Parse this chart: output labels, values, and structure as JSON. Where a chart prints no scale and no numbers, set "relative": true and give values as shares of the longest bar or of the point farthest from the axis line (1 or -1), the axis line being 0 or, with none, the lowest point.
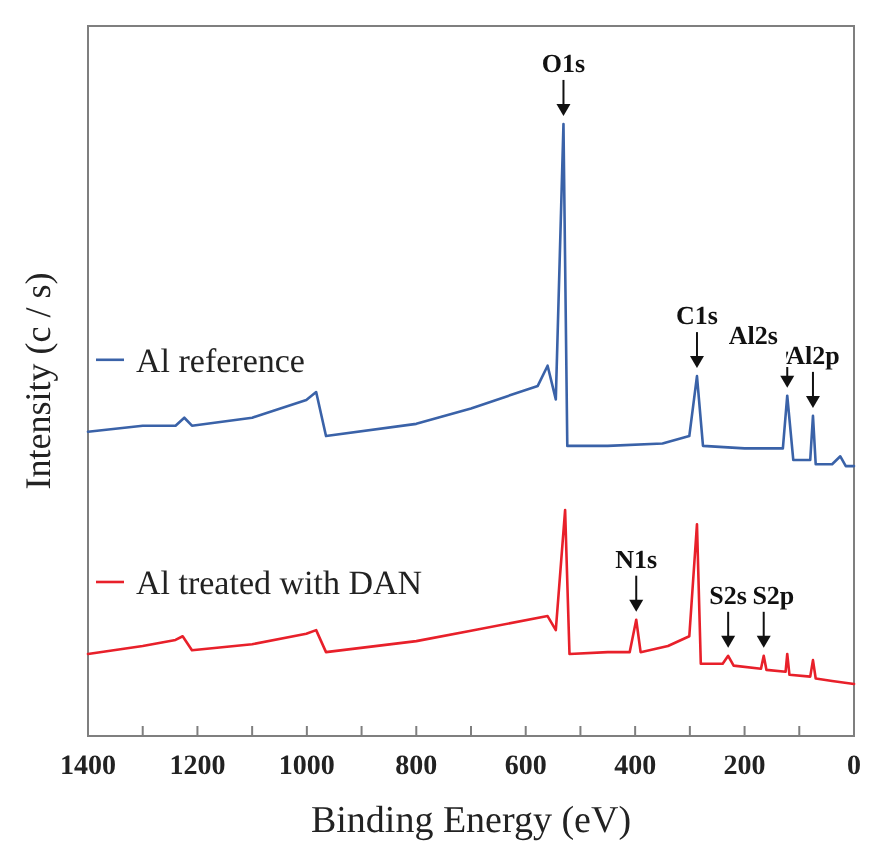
{
  "chart_data": {
    "type": "line",
    "relative": true,
    "xlabel": "Binding Energy (eV)",
    "ylabel": "Intensity (c / s)",
    "xlim": [
      1400,
      0
    ],
    "xticks": [
      1400,
      {
        "value": 1300,
        "label": null
      },
      1200,
      {
        "value": 1100,
        "label": null
      },
      1000,
      {
        "value": 900,
        "label": null
      },
      800,
      {
        "value": 700,
        "label": null
      },
      600,
      {
        "value": 500,
        "label": null
      },
      400,
      {
        "value": 300,
        "label": null
      },
      200,
      {
        "value": 100,
        "label": null
      },
      0
    ],
    "grid": false,
    "legend": "left",
    "marker": "none",
    "line_style": "solid",
    "series": [
      {
        "name": "Al reference",
        "color": "#3a62a8",
        "x": [
          1400,
          1300,
          1240,
          1224,
          1210,
          1100,
          1001,
          983,
          965,
          800,
          700,
          578,
          560,
          545,
          531,
          524,
          450,
          350,
          301,
          287,
          276,
          200,
          130,
          122,
          111,
          80,
          75,
          70,
          40,
          25,
          15,
          0
        ],
        "values": [
          0.497,
          0.507,
          0.507,
          0.52,
          0.507,
          0.52,
          0.549,
          0.562,
          0.49,
          0.51,
          0.535,
          0.572,
          0.605,
          0.55,
          1.0,
          0.474,
          0.474,
          0.478,
          0.49,
          0.588,
          0.474,
          0.47,
          0.47,
          0.556,
          0.451,
          0.451,
          0.523,
          0.444,
          0.444,
          0.457,
          0.441,
          0.441
        ]
      },
      {
        "name": "Al treated with DAN",
        "color": "#e8202a",
        "x": [
          1400,
          1300,
          1240,
          1227,
          1210,
          1100,
          1001,
          983,
          965,
          800,
          700,
          560,
          545,
          528,
          520,
          450,
          410,
          398,
          390,
          340,
          301,
          287,
          280,
          240,
          230,
          220,
          170,
          165,
          160,
          125,
          122,
          118,
          80,
          75,
          70,
          40,
          0
        ],
        "values": [
          0.134,
          0.147,
          0.157,
          0.163,
          0.14,
          0.15,
          0.167,
          0.173,
          0.137,
          0.155,
          0.172,
          0.196,
          0.173,
          0.369,
          0.134,
          0.137,
          0.137,
          0.19,
          0.137,
          0.147,
          0.163,
          0.346,
          0.118,
          0.118,
          0.131,
          0.115,
          0.11,
          0.131,
          0.108,
          0.105,
          0.134,
          0.1,
          0.097,
          0.124,
          0.094,
          0.09,
          0.085
        ]
      }
    ],
    "annotations": [
      {
        "text": "O1s",
        "x": 531,
        "y": 1.0
      },
      {
        "text": "C1s",
        "x": 287,
        "y": 0.588
      },
      {
        "text": "Al2s",
        "x": 122,
        "y": 0.556
      },
      {
        "text": "Al2p",
        "x": 75,
        "y": 0.523
      },
      {
        "text": "N1s",
        "x": 398,
        "y": 0.19
      },
      {
        "text": "S2s",
        "x": 230,
        "y": 0.131
      },
      {
        "text": "S2p",
        "x": 165,
        "y": 0.131
      }
    ]
  }
}
